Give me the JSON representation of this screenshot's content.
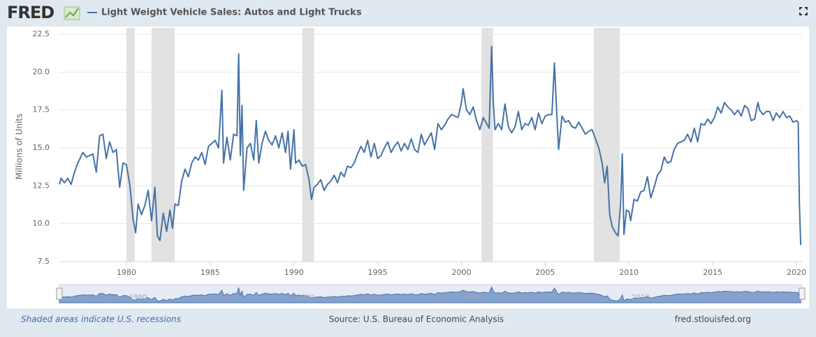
{
  "chart_data": {
    "type": "line",
    "logo": "FRED",
    "ylabel": "Millions of Units",
    "xlim": [
      1976,
      2020.33
    ],
    "ylim": [
      7.5,
      22.5
    ],
    "xticks": [
      1980,
      1985,
      1990,
      1995,
      2000,
      2005,
      2010,
      2015,
      2020
    ],
    "yticks": [
      7.5,
      {
        "value": 10,
        "label": "10.0"
      },
      12.5,
      {
        "value": 15,
        "label": "15.0"
      },
      17.5,
      {
        "value": 20,
        "label": "20.0"
      },
      22.5
    ],
    "grid": true,
    "recession_note": "Shaded areas indicate U.S. recessions",
    "source": "Source: U.S. Bureau of Economic Analysis",
    "site": "fred.stlouisfed.org",
    "recessions": [
      {
        "start": 1980.0,
        "end": 1980.5
      },
      {
        "start": 1981.5,
        "end": 1982.88
      },
      {
        "start": 1990.5,
        "end": 1991.2
      },
      {
        "start": 2001.2,
        "end": 2001.88
      },
      {
        "start": 2007.9,
        "end": 2009.45
      }
    ],
    "navigator_xticks": [
      1980,
      1990,
      2000,
      2010
    ],
    "x": [
      1976.0,
      1976.1,
      1976.3,
      1976.5,
      1976.7,
      1976.9,
      1977.1,
      1977.4,
      1977.6,
      1977.8,
      1978.0,
      1978.2,
      1978.4,
      1978.6,
      1978.8,
      1979.0,
      1979.2,
      1979.4,
      1979.6,
      1979.8,
      1980.0,
      1980.2,
      1980.4,
      1980.55,
      1980.7,
      1980.9,
      1981.1,
      1981.3,
      1981.5,
      1981.7,
      1981.85,
      1982.0,
      1982.2,
      1982.4,
      1982.6,
      1982.75,
      1982.9,
      1983.1,
      1983.3,
      1983.5,
      1983.7,
      1983.9,
      1984.1,
      1984.3,
      1984.5,
      1984.7,
      1984.9,
      1985.1,
      1985.3,
      1985.5,
      1985.7,
      1985.8,
      1986.0,
      1986.2,
      1986.4,
      1986.6,
      1986.7,
      1986.8,
      1986.9,
      1987.0,
      1987.2,
      1987.4,
      1987.6,
      1987.75,
      1987.9,
      1988.1,
      1988.3,
      1988.5,
      1988.7,
      1988.9,
      1989.1,
      1989.3,
      1989.5,
      1989.65,
      1989.8,
      1990.0,
      1990.1,
      1990.3,
      1990.5,
      1990.7,
      1990.9,
      1991.05,
      1991.2,
      1991.4,
      1991.6,
      1991.8,
      1992.0,
      1992.2,
      1992.4,
      1992.6,
      1992.8,
      1993.0,
      1993.2,
      1993.4,
      1993.6,
      1993.8,
      1994.0,
      1994.2,
      1994.4,
      1994.6,
      1994.8,
      1995.0,
      1995.2,
      1995.4,
      1995.6,
      1995.8,
      1996.0,
      1996.2,
      1996.4,
      1996.6,
      1996.8,
      1997.0,
      1997.2,
      1997.4,
      1997.6,
      1997.8,
      1998.0,
      1998.2,
      1998.4,
      1998.6,
      1998.8,
      1999.0,
      1999.2,
      1999.4,
      1999.6,
      1999.8,
      2000.0,
      2000.1,
      2000.3,
      2000.5,
      2000.7,
      2000.9,
      2001.1,
      2001.3,
      2001.5,
      2001.65,
      2001.8,
      2001.9,
      2002.0,
      2002.2,
      2002.4,
      2002.6,
      2002.8,
      2003.0,
      2003.2,
      2003.4,
      2003.6,
      2003.8,
      2004.0,
      2004.2,
      2004.4,
      2004.6,
      2004.8,
      2005.0,
      2005.2,
      2005.4,
      2005.55,
      2005.7,
      2005.8,
      2006.0,
      2006.2,
      2006.4,
      2006.6,
      2006.8,
      2007.0,
      2007.2,
      2007.4,
      2007.6,
      2007.8,
      2008.0,
      2008.2,
      2008.4,
      2008.55,
      2008.7,
      2008.85,
      2009.0,
      2009.2,
      2009.35,
      2009.5,
      2009.6,
      2009.7,
      2009.85,
      2010.0,
      2010.1,
      2010.3,
      2010.5,
      2010.7,
      2010.9,
      2011.1,
      2011.3,
      2011.5,
      2011.7,
      2011.9,
      2012.1,
      2012.3,
      2012.5,
      2012.7,
      2012.9,
      2013.1,
      2013.3,
      2013.5,
      2013.7,
      2013.9,
      2014.1,
      2014.3,
      2014.5,
      2014.7,
      2014.9,
      2015.1,
      2015.3,
      2015.5,
      2015.7,
      2015.9,
      2016.1,
      2016.3,
      2016.5,
      2016.7,
      2016.9,
      2017.1,
      2017.3,
      2017.5,
      2017.7,
      2017.8,
      2018.0,
      2018.2,
      2018.4,
      2018.6,
      2018.8,
      2019.0,
      2019.2,
      2019.4,
      2019.6,
      2019.8,
      2020.0,
      2020.1,
      2020.17,
      2020.25
    ],
    "series": [
      {
        "name": "Light Weight Vehicle Sales: Autos and Light Trucks",
        "color": "#4572a7",
        "values": [
          12.6,
          13.0,
          12.7,
          13.0,
          12.6,
          13.4,
          14.0,
          14.7,
          14.4,
          14.5,
          14.6,
          13.4,
          15.8,
          15.9,
          14.3,
          15.4,
          14.7,
          14.9,
          12.4,
          14.0,
          13.9,
          12.6,
          10.3,
          9.4,
          11.3,
          10.6,
          11.2,
          12.2,
          10.2,
          12.4,
          9.2,
          8.9,
          10.7,
          9.5,
          10.9,
          9.7,
          11.3,
          11.2,
          12.8,
          13.6,
          13.1,
          14.0,
          14.4,
          14.2,
          14.7,
          13.9,
          15.1,
          15.3,
          15.5,
          15.0,
          18.8,
          14.0,
          15.7,
          14.2,
          15.9,
          15.8,
          21.2,
          14.5,
          17.8,
          12.2,
          15.0,
          15.3,
          14.2,
          16.8,
          14.0,
          15.3,
          16.1,
          15.5,
          15.2,
          15.8,
          15.0,
          16.0,
          14.7,
          16.1,
          13.6,
          16.2,
          14.0,
          14.2,
          13.8,
          13.9,
          12.9,
          11.6,
          12.4,
          12.6,
          12.9,
          12.2,
          12.6,
          12.8,
          13.2,
          12.7,
          13.4,
          13.1,
          13.8,
          13.7,
          14.0,
          14.6,
          15.1,
          14.7,
          15.5,
          14.4,
          15.3,
          14.3,
          14.5,
          15.0,
          15.4,
          14.7,
          15.1,
          15.4,
          14.8,
          15.3,
          14.9,
          15.6,
          14.9,
          14.7,
          15.9,
          15.2,
          15.6,
          16.0,
          14.9,
          16.6,
          16.2,
          16.5,
          16.9,
          17.2,
          17.1,
          17.0,
          18.0,
          18.9,
          17.5,
          17.2,
          17.7,
          16.8,
          16.2,
          17.0,
          16.6,
          16.3,
          21.7,
          18.0,
          16.2,
          16.6,
          16.2,
          17.9,
          16.4,
          16.0,
          16.4,
          17.4,
          16.2,
          16.6,
          16.5,
          17.0,
          16.2,
          17.3,
          16.6,
          17.1,
          17.2,
          17.2,
          20.6,
          17.0,
          14.9,
          17.1,
          16.7,
          16.8,
          16.4,
          16.3,
          16.7,
          16.3,
          15.9,
          16.1,
          16.2,
          15.6,
          15.0,
          14.0,
          12.7,
          13.8,
          10.6,
          9.8,
          9.4,
          9.2,
          11.3,
          14.6,
          9.3,
          10.9,
          10.8,
          10.2,
          11.6,
          11.5,
          12.1,
          12.2,
          13.1,
          11.7,
          12.4,
          13.2,
          13.5,
          14.4,
          14.0,
          14.1,
          14.9,
          15.3,
          15.4,
          15.5,
          15.9,
          15.4,
          16.3,
          15.4,
          16.6,
          16.5,
          16.9,
          16.6,
          17.0,
          17.7,
          17.3,
          18.0,
          17.7,
          17.5,
          17.2,
          17.5,
          17.1,
          17.8,
          17.6,
          16.8,
          16.9,
          18.0,
          17.5,
          17.2,
          17.4,
          17.4,
          16.8,
          17.3,
          17.0,
          17.4,
          17.0,
          17.1,
          16.7,
          16.8,
          16.7,
          11.4,
          8.6
        ]
      }
    ]
  }
}
